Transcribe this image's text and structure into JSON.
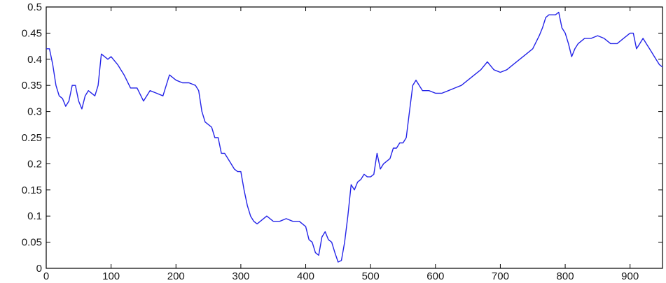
{
  "chart_data": {
    "type": "line",
    "title": "",
    "xlabel": "",
    "ylabel": "",
    "xlim": [
      0,
      950
    ],
    "ylim": [
      0,
      0.5
    ],
    "grid": false,
    "xticks": [
      0,
      100,
      200,
      300,
      400,
      500,
      600,
      700,
      800,
      900
    ],
    "xtick_labels": [
      "0",
      "100",
      "200",
      "300",
      "400",
      "500",
      "600",
      "700",
      "800",
      "900"
    ],
    "yticks": [
      0,
      0.05,
      0.1,
      0.15,
      0.2,
      0.25,
      0.3,
      0.35,
      0.4,
      0.45,
      0.5
    ],
    "ytick_labels": [
      "0",
      "0.05",
      "0.1",
      "0.15",
      "0.2",
      "0.25",
      "0.3",
      "0.35",
      "0.4",
      "0.45",
      "0.5"
    ],
    "series": [
      {
        "color": "#2424e8",
        "x": [
          0,
          5,
          10,
          15,
          20,
          25,
          30,
          35,
          40,
          45,
          50,
          55,
          60,
          65,
          70,
          75,
          80,
          85,
          90,
          95,
          100,
          110,
          120,
          130,
          140,
          150,
          160,
          170,
          180,
          190,
          200,
          210,
          220,
          230,
          235,
          240,
          245,
          250,
          255,
          260,
          265,
          270,
          275,
          280,
          285,
          290,
          295,
          300,
          305,
          310,
          315,
          320,
          325,
          330,
          340,
          350,
          360,
          370,
          380,
          390,
          400,
          405,
          410,
          415,
          420,
          425,
          430,
          435,
          440,
          445,
          450,
          455,
          460,
          465,
          470,
          475,
          480,
          485,
          490,
          495,
          500,
          505,
          510,
          515,
          520,
          525,
          530,
          535,
          540,
          545,
          550,
          555,
          560,
          565,
          570,
          575,
          580,
          590,
          600,
          610,
          620,
          630,
          640,
          650,
          660,
          670,
          680,
          690,
          700,
          710,
          720,
          730,
          740,
          750,
          760,
          765,
          770,
          775,
          780,
          785,
          790,
          795,
          800,
          805,
          810,
          815,
          820,
          830,
          840,
          850,
          860,
          870,
          880,
          890,
          900,
          905,
          910,
          915,
          920,
          925,
          930,
          935,
          940,
          945,
          950
        ],
        "y": [
          0.42,
          0.42,
          0.39,
          0.35,
          0.33,
          0.325,
          0.31,
          0.32,
          0.35,
          0.35,
          0.32,
          0.305,
          0.33,
          0.34,
          0.335,
          0.33,
          0.35,
          0.41,
          0.405,
          0.4,
          0.405,
          0.39,
          0.37,
          0.345,
          0.345,
          0.32,
          0.34,
          0.335,
          0.33,
          0.37,
          0.36,
          0.355,
          0.355,
          0.35,
          0.34,
          0.3,
          0.28,
          0.275,
          0.27,
          0.25,
          0.25,
          0.22,
          0.22,
          0.21,
          0.2,
          0.19,
          0.185,
          0.185,
          0.15,
          0.12,
          0.1,
          0.09,
          0.085,
          0.09,
          0.1,
          0.09,
          0.09,
          0.095,
          0.09,
          0.09,
          0.08,
          0.055,
          0.05,
          0.03,
          0.025,
          0.06,
          0.07,
          0.055,
          0.05,
          0.03,
          0.012,
          0.015,
          0.05,
          0.1,
          0.16,
          0.15,
          0.165,
          0.17,
          0.18,
          0.175,
          0.175,
          0.18,
          0.22,
          0.19,
          0.2,
          0.205,
          0.21,
          0.23,
          0.23,
          0.24,
          0.24,
          0.25,
          0.3,
          0.35,
          0.36,
          0.35,
          0.34,
          0.34,
          0.335,
          0.335,
          0.34,
          0.345,
          0.35,
          0.36,
          0.37,
          0.38,
          0.395,
          0.38,
          0.375,
          0.38,
          0.39,
          0.4,
          0.41,
          0.42,
          0.445,
          0.46,
          0.48,
          0.485,
          0.485,
          0.485,
          0.49,
          0.46,
          0.45,
          0.43,
          0.405,
          0.42,
          0.43,
          0.44,
          0.44,
          0.445,
          0.44,
          0.43,
          0.43,
          0.44,
          0.45,
          0.45,
          0.42,
          0.43,
          0.44,
          0.43,
          0.42,
          0.41,
          0.4,
          0.39,
          0.385
        ]
      }
    ]
  }
}
